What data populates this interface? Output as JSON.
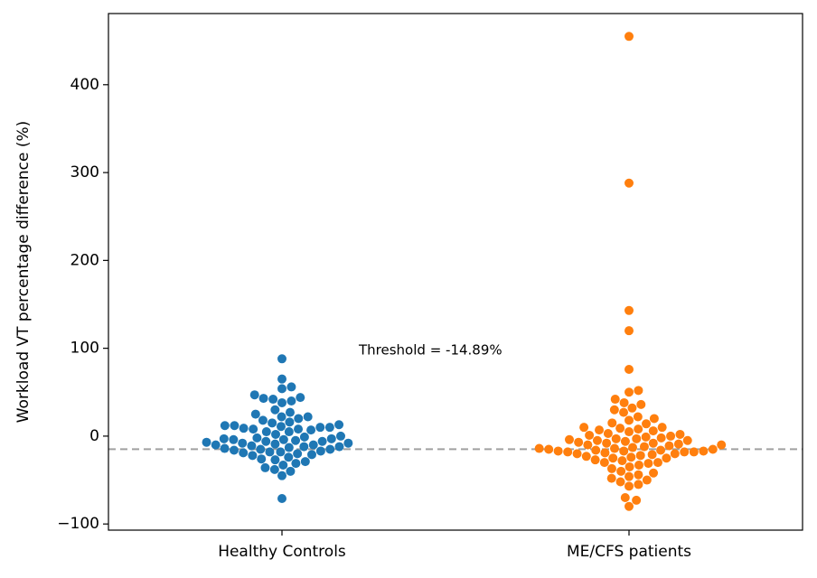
{
  "chart_data": {
    "type": "swarm",
    "ylabel": "Workload VT percentage difference (%)",
    "categories": [
      "Healthy Controls",
      "ME/CFS patients"
    ],
    "colors": [
      "#1f77b4",
      "#ff7f0e"
    ],
    "values": [
      [
        88,
        65,
        56,
        54,
        47,
        44,
        43,
        42,
        40,
        38,
        30,
        27,
        25,
        22,
        20,
        18,
        16,
        13,
        12,
        11,
        10,
        9,
        8,
        7,
        5,
        2,
        0,
        -1,
        -2,
        -3,
        -4,
        -5,
        -6,
        -7,
        -8,
        -9,
        -10,
        -11,
        -12,
        -13,
        -14,
        -15,
        -16,
        -17,
        -18,
        -19,
        -20,
        -21,
        -22,
        -24,
        -26,
        -27,
        -29,
        -31,
        -33,
        -36,
        -38,
        -40,
        -45,
        -71,
        -3,
        -4,
        -6,
        -10,
        -12,
        -15,
        -18,
        8,
        10,
        12,
        22,
        15,
        5,
        -8
      ],
      [
        455,
        288,
        143,
        120,
        76,
        52,
        50,
        42,
        38,
        36,
        32,
        30,
        27,
        22,
        20,
        18,
        14,
        10,
        9,
        8,
        7,
        6,
        5,
        2,
        1,
        0,
        -1,
        -2,
        -3,
        -4,
        -5,
        -6,
        -7,
        -8,
        -9,
        -10,
        -11,
        -12,
        -13,
        -14,
        -15,
        -15,
        -16,
        -16,
        -17,
        -17,
        -17,
        -18,
        -18,
        -19,
        -20,
        -21,
        -22,
        -23,
        -24,
        -25,
        -27,
        -28,
        -30,
        -31,
        -33,
        -35,
        -37,
        -40,
        -42,
        -44,
        -46,
        -48,
        -50,
        -52,
        -55,
        -57,
        -70,
        -73,
        -80,
        -3,
        -8,
        -10,
        -14,
        -18,
        -20,
        -25,
        -30,
        3,
        10,
        15,
        -5
      ]
    ],
    "threshold": {
      "value": -14.89,
      "label": "Threshold = -14.89%"
    },
    "ylim": [
      -107,
      481
    ],
    "yticks": [
      {
        "value": -100,
        "label": "−100"
      },
      0,
      100,
      200,
      300,
      400
    ]
  }
}
